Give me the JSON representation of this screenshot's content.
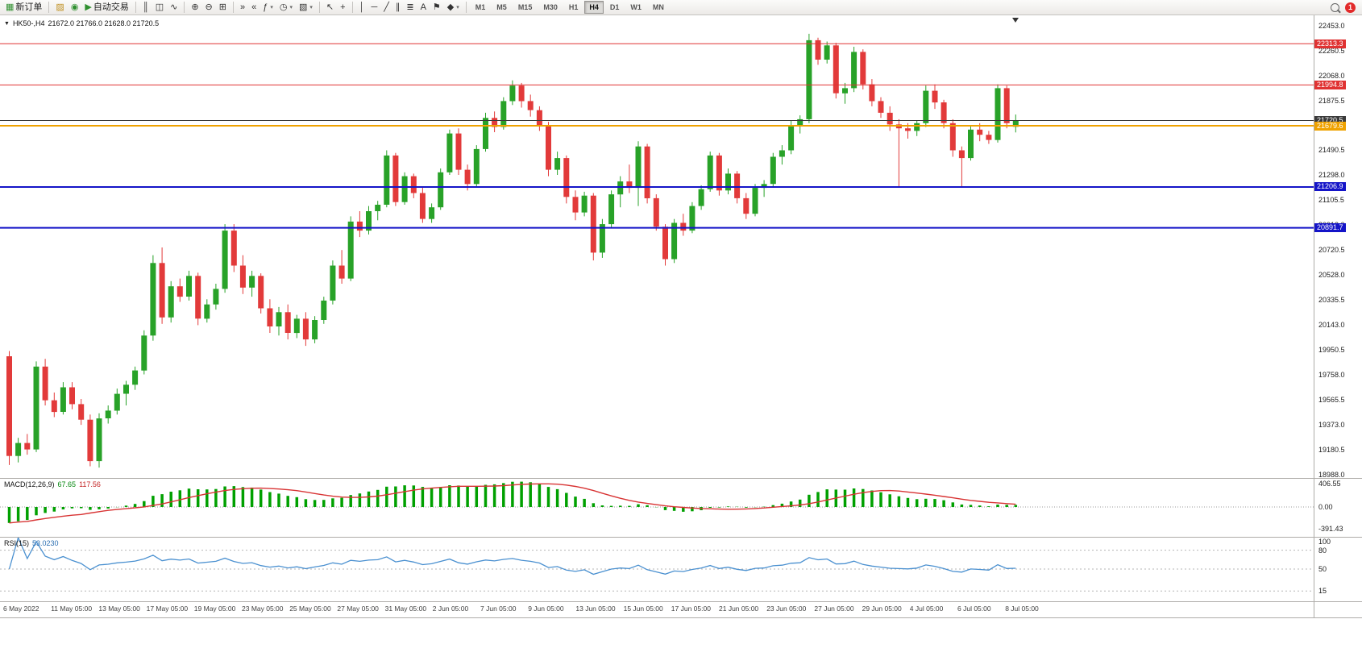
{
  "toolbar": {
    "items": [
      {
        "type": "icon",
        "name": "new-order",
        "glyph": "▦",
        "label": "新订单",
        "color": "#2f8f2f"
      },
      {
        "type": "sep"
      },
      {
        "type": "icon",
        "name": "toolbox",
        "glyph": "▨",
        "color": "#c09020"
      },
      {
        "type": "icon",
        "name": "refresh",
        "glyph": "◉",
        "color": "#2f8f2f"
      },
      {
        "type": "icon",
        "name": "autotrading",
        "glyph": "▶",
        "label": "自动交易",
        "color": "#2f8f2f"
      },
      {
        "type": "sep"
      },
      {
        "type": "icon",
        "name": "bar-chart",
        "glyph": "║"
      },
      {
        "type": "icon",
        "name": "candlestick-chart",
        "glyph": "◫"
      },
      {
        "type": "icon",
        "name": "line-chart",
        "glyph": "∿"
      },
      {
        "type": "sep"
      },
      {
        "type": "icon",
        "name": "zoom-in",
        "glyph": "⊕"
      },
      {
        "type": "icon",
        "name": "zoom-out",
        "glyph": "⊖"
      },
      {
        "type": "icon",
        "name": "tile-windows",
        "glyph": "⊞"
      },
      {
        "type": "sep"
      },
      {
        "type": "icon",
        "name": "auto-scroll",
        "glyph": "»"
      },
      {
        "type": "icon",
        "name": "chart-shift",
        "glyph": "«"
      },
      {
        "type": "icon",
        "name": "indicators-list",
        "glyph": "ƒ",
        "dropdown": true
      },
      {
        "type": "icon",
        "name": "periods",
        "glyph": "◷",
        "dropdown": true
      },
      {
        "type": "icon",
        "name": "templates",
        "glyph": "▧",
        "dropdown": true
      },
      {
        "type": "sep"
      },
      {
        "type": "icon",
        "name": "cursor",
        "glyph": "↖"
      },
      {
        "type": "icon",
        "name": "crosshair",
        "glyph": "+"
      },
      {
        "type": "sep"
      },
      {
        "type": "icon",
        "name": "vertical-line",
        "glyph": "│"
      },
      {
        "type": "icon",
        "name": "horizontal-line",
        "glyph": "─"
      },
      {
        "type": "icon",
        "name": "trendline",
        "glyph": "╱"
      },
      {
        "type": "icon",
        "name": "equidistant-channel",
        "glyph": "∥"
      },
      {
        "type": "icon",
        "name": "fibonacci-retracement",
        "glyph": "≣"
      },
      {
        "type": "icon",
        "name": "text",
        "glyph": "A"
      },
      {
        "type": "icon",
        "name": "text-label",
        "glyph": "⚑"
      },
      {
        "type": "icon",
        "name": "arrows",
        "glyph": "◆",
        "dropdown": true
      },
      {
        "type": "sep"
      },
      {
        "type": "tf-group"
      }
    ],
    "timeframes": [
      "M1",
      "M5",
      "M15",
      "M30",
      "H1",
      "H4",
      "D1",
      "W1",
      "MN"
    ],
    "active_timeframe": "H4",
    "notification_count": "1"
  },
  "ui": {
    "expander_glyph": "▼"
  },
  "chart_data": {
    "type": "candlestick",
    "title": "HK50-,H4",
    "ohlc_label": "21672.0 21766.0 21628.0 21720.5",
    "colors": {
      "up": "#28a228",
      "down": "#e23a3a"
    },
    "price_axis": {
      "min": 18960,
      "max": 22520,
      "ticks": [
        "22453.0",
        "22260.5",
        "22068.0",
        "21875.5",
        "21683.0",
        "21490.5",
        "21298.0",
        "21105.5",
        "20913.0",
        "20720.5",
        "20528.0",
        "20335.5",
        "20143.0",
        "19950.5",
        "19758.0",
        "19565.5",
        "19373.0",
        "19180.5",
        "18988.0"
      ]
    },
    "hlines": [
      {
        "price": 22313.3,
        "label": "22313.3",
        "color": "#e03232",
        "thickness": 1
      },
      {
        "price": 21994.8,
        "label": "21994.8",
        "color": "#e03232",
        "thickness": 1
      },
      {
        "price": 21720.5,
        "label": "21720.5",
        "color": "#3a3a3a",
        "thickness": 1
      },
      {
        "price": 21679.6,
        "label": "21679.6",
        "color": "#efa200",
        "thickness": 2
      },
      {
        "price": 21206.9,
        "label": "21206.9",
        "color": "#1414c8",
        "thickness": 2
      },
      {
        "price": 20891.7,
        "label": "20891.7",
        "color": "#1414c8",
        "thickness": 2
      }
    ],
    "candles": [
      [
        19900,
        19940,
        19060,
        19130
      ],
      [
        19130,
        19270,
        19080,
        19230
      ],
      [
        19230,
        19300,
        19140,
        19180
      ],
      [
        19180,
        19860,
        19160,
        19820
      ],
      [
        19820,
        19880,
        19520,
        19560
      ],
      [
        19560,
        19620,
        19430,
        19470
      ],
      [
        19470,
        19700,
        19450,
        19660
      ],
      [
        19660,
        19700,
        19490,
        19530
      ],
      [
        19530,
        19570,
        19370,
        19410
      ],
      [
        19410,
        19450,
        19050,
        19090
      ],
      [
        19090,
        19460,
        19040,
        19420
      ],
      [
        19420,
        19520,
        19380,
        19480
      ],
      [
        19480,
        19650,
        19450,
        19610
      ],
      [
        19610,
        19710,
        19520,
        19680
      ],
      [
        19680,
        19820,
        19640,
        19790
      ],
      [
        19790,
        20100,
        19760,
        20060
      ],
      [
        20060,
        20680,
        20020,
        20620
      ],
      [
        20620,
        20740,
        20150,
        20200
      ],
      [
        20200,
        20480,
        20160,
        20440
      ],
      [
        20440,
        20500,
        20320,
        20360
      ],
      [
        20360,
        20560,
        20330,
        20520
      ],
      [
        20520,
        20545,
        20140,
        20190
      ],
      [
        20190,
        20340,
        20160,
        20300
      ],
      [
        20300,
        20460,
        20260,
        20420
      ],
      [
        20420,
        20920,
        20390,
        20870
      ],
      [
        20870,
        20920,
        20550,
        20600
      ],
      [
        20600,
        20680,
        20380,
        20430
      ],
      [
        20430,
        20560,
        20360,
        20520
      ],
      [
        20520,
        20540,
        20230,
        20270
      ],
      [
        20270,
        20340,
        20080,
        20130
      ],
      [
        20130,
        20280,
        20060,
        20240
      ],
      [
        20240,
        20300,
        20030,
        20080
      ],
      [
        20080,
        20220,
        20040,
        20190
      ],
      [
        20190,
        20240,
        19980,
        20030
      ],
      [
        20030,
        20210,
        20000,
        20180
      ],
      [
        20180,
        20360,
        20150,
        20330
      ],
      [
        20330,
        20640,
        20300,
        20600
      ],
      [
        20600,
        20720,
        20460,
        20500
      ],
      [
        20500,
        20980,
        20480,
        20940
      ],
      [
        20940,
        21020,
        20820,
        20870
      ],
      [
        20870,
        21060,
        20840,
        21020
      ],
      [
        21020,
        21100,
        20950,
        21070
      ],
      [
        21070,
        21490,
        21050,
        21450
      ],
      [
        21450,
        21470,
        21060,
        21090
      ],
      [
        21090,
        21320,
        21070,
        21290
      ],
      [
        21290,
        21310,
        21120,
        21160
      ],
      [
        21160,
        21200,
        20930,
        20960
      ],
      [
        20960,
        21080,
        20930,
        21050
      ],
      [
        21050,
        21350,
        21030,
        21320
      ],
      [
        21320,
        21650,
        21300,
        21620
      ],
      [
        21620,
        21660,
        21300,
        21340
      ],
      [
        21340,
        21380,
        21180,
        21230
      ],
      [
        21230,
        21530,
        21210,
        21500
      ],
      [
        21500,
        21780,
        21480,
        21740
      ],
      [
        21740,
        21790,
        21630,
        21670
      ],
      [
        21670,
        21900,
        21650,
        21870
      ],
      [
        21870,
        22030,
        21840,
        21990
      ],
      [
        21990,
        22010,
        21820,
        21870
      ],
      [
        21870,
        21920,
        21750,
        21800
      ],
      [
        21800,
        21830,
        21640,
        21680
      ],
      [
        21680,
        21710,
        21290,
        21340
      ],
      [
        21340,
        21480,
        21300,
        21430
      ],
      [
        21430,
        21450,
        21080,
        21130
      ],
      [
        21130,
        21180,
        20950,
        21010
      ],
      [
        21010,
        21170,
        20980,
        21140
      ],
      [
        21140,
        21160,
        20640,
        20700
      ],
      [
        20700,
        20960,
        20660,
        20920
      ],
      [
        20920,
        21180,
        20890,
        21150
      ],
      [
        21150,
        21290,
        21050,
        21250
      ],
      [
        21250,
        21380,
        21160,
        21200
      ],
      [
        21200,
        21560,
        21060,
        21520
      ],
      [
        21520,
        21540,
        21080,
        21120
      ],
      [
        21120,
        21150,
        20870,
        20900
      ],
      [
        20900,
        20920,
        20600,
        20650
      ],
      [
        20650,
        20960,
        20620,
        20930
      ],
      [
        20930,
        21000,
        20830,
        20870
      ],
      [
        20870,
        21090,
        20850,
        21060
      ],
      [
        21060,
        21220,
        21030,
        21190
      ],
      [
        21190,
        21480,
        21170,
        21450
      ],
      [
        21450,
        21470,
        21140,
        21180
      ],
      [
        21180,
        21350,
        21150,
        21310
      ],
      [
        21310,
        21330,
        21080,
        21120
      ],
      [
        21120,
        21160,
        20960,
        21000
      ],
      [
        21000,
        21230,
        20980,
        21200
      ],
      [
        21200,
        21260,
        21130,
        21230
      ],
      [
        21230,
        21470,
        21210,
        21440
      ],
      [
        21440,
        21530,
        21380,
        21490
      ],
      [
        21490,
        21720,
        21460,
        21680
      ],
      [
        21680,
        21760,
        21620,
        21730
      ],
      [
        21730,
        22390,
        21700,
        22340
      ],
      [
        22340,
        22360,
        22150,
        22190
      ],
      [
        22190,
        22330,
        22160,
        22300
      ],
      [
        22300,
        22320,
        21890,
        21930
      ],
      [
        21930,
        22010,
        21850,
        21970
      ],
      [
        21970,
        22290,
        21940,
        22250
      ],
      [
        22250,
        22270,
        21960,
        22000
      ],
      [
        22000,
        22040,
        21830,
        21870
      ],
      [
        21870,
        21900,
        21740,
        21780
      ],
      [
        21780,
        21830,
        21640,
        21690
      ],
      [
        21690,
        21730,
        21210,
        21660
      ],
      [
        21660,
        21700,
        21580,
        21640
      ],
      [
        21640,
        21720,
        21600,
        21700
      ],
      [
        21700,
        21990,
        21670,
        21950
      ],
      [
        21950,
        22000,
        21810,
        21860
      ],
      [
        21860,
        21880,
        21660,
        21700
      ],
      [
        21700,
        21730,
        21440,
        21490
      ],
      [
        21490,
        21520,
        21210,
        21430
      ],
      [
        21430,
        21680,
        21410,
        21650
      ],
      [
        21650,
        21700,
        21560,
        21610
      ],
      [
        21610,
        21640,
        21540,
        21570
      ],
      [
        21570,
        22000,
        21550,
        21970
      ],
      [
        21970,
        21990,
        21660,
        21700
      ],
      [
        21672,
        21766,
        21628,
        21720.5
      ]
    ],
    "time_labels": [
      "6 May 2022",
      "11 May 05:00",
      "13 May 05:00",
      "17 May 05:00",
      "19 May 05:00",
      "23 May 05:00",
      "25 May 05:00",
      "27 May 05:00",
      "31 May 05:00",
      "2 Jun 05:00",
      "7 Jun 05:00",
      "9 Jun 05:00",
      "13 Jun 05:00",
      "15 Jun 05:00",
      "17 Jun 05:00",
      "21 Jun 05:00",
      "23 Jun 05:00",
      "27 Jun 05:00",
      "29 Jun 05:00",
      "4 Jul 05:00",
      "6 Jul 05:00",
      "8 Jul 05:00"
    ],
    "indicators": {
      "macd": {
        "name": "MACD(12,26,9)",
        "params": [
          12,
          26,
          9
        ],
        "value_main": "67.65",
        "value_signal": "117.56",
        "axis_labels": [
          "406.55",
          "0.00",
          "-391.43"
        ],
        "hist_color": "#00a000",
        "signal_color": "#d83434"
      },
      "rsi": {
        "name": "RSI(15)",
        "period": 15,
        "value": "53.0230",
        "levels": [
          80,
          50,
          15
        ],
        "axis_labels": [
          "100",
          "80",
          "50",
          "15"
        ],
        "line_color": "#4a90d0"
      }
    }
  }
}
